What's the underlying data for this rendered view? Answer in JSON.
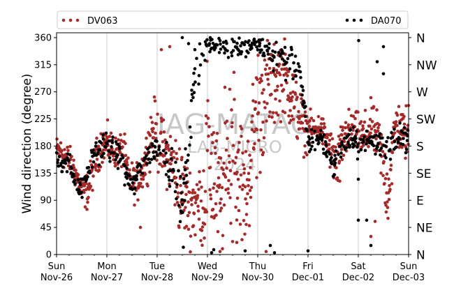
{
  "chart_data": {
    "type": "scatter",
    "ylabel": "Wind direction (degree)",
    "ylim": [
      0,
      368
    ],
    "yticks": [
      0,
      45,
      90,
      135,
      180,
      225,
      270,
      315,
      360
    ],
    "compass_labels": [
      {
        "deg": 0,
        "label": "N"
      },
      {
        "deg": 45,
        "label": "NE"
      },
      {
        "deg": 90,
        "label": "E"
      },
      {
        "deg": 135,
        "label": "SE"
      },
      {
        "deg": 180,
        "label": "S"
      },
      {
        "deg": 225,
        "label": "SW"
      },
      {
        "deg": 270,
        "label": "W"
      },
      {
        "deg": 315,
        "label": "NW"
      },
      {
        "deg": 360,
        "label": "N"
      }
    ],
    "xlim": [
      "2023-11-26",
      "2023-12-03"
    ],
    "xticks": [
      {
        "day": "Sun",
        "date": "Nov-26"
      },
      {
        "day": "Mon",
        "date": "Nov-27"
      },
      {
        "day": "Tue",
        "date": "Nov-28"
      },
      {
        "day": "Wed",
        "date": "Nov-29"
      },
      {
        "day": "Thu",
        "date": "Nov-30"
      },
      {
        "day": "Fri",
        "date": "Dec-01"
      },
      {
        "day": "Sat",
        "date": "Dec-02"
      },
      {
        "day": "Sun",
        "date": "Dec-03"
      }
    ],
    "grid": "vertical at day boundaries",
    "legend_placement": "top",
    "watermark": [
      "IAG-MATAO",
      "LAB-MICRO",
      "2024"
    ],
    "series": [
      {
        "name": "DV063",
        "color": "#a52a2a",
        "marker": "dot",
        "anchors": [
          [
            "2023-11-26 00:00",
            175,
            10
          ],
          [
            "2023-11-26 04:00",
            165,
            12
          ],
          [
            "2023-11-26 08:00",
            145,
            12
          ],
          [
            "2023-11-26 12:00",
            105,
            12
          ],
          [
            "2023-11-26 15:00",
            105,
            15
          ],
          [
            "2023-11-26 18:00",
            150,
            15
          ],
          [
            "2023-11-26 21:00",
            180,
            15
          ],
          [
            "2023-11-27 00:00",
            185,
            15
          ],
          [
            "2023-11-27 04:00",
            170,
            12
          ],
          [
            "2023-11-27 08:00",
            175,
            15
          ],
          [
            "2023-11-27 10:00",
            130,
            15
          ],
          [
            "2023-11-27 14:00",
            115,
            15
          ],
          [
            "2023-11-27 18:00",
            150,
            18
          ],
          [
            "2023-11-27 22:00",
            210,
            25
          ],
          [
            "2023-11-28 02:00",
            175,
            25
          ],
          [
            "2023-11-28 06:00",
            160,
            25
          ],
          [
            "2023-11-28 10:00",
            120,
            40
          ],
          [
            "2023-11-28 14:00",
            90,
            30
          ],
          [
            "2023-11-28 18:00",
            85,
            35
          ],
          [
            "2023-11-28 22:00",
            80,
            40
          ],
          [
            "2023-11-29 00:00",
            180,
            90
          ],
          [
            "2023-11-29 06:00",
            85,
            40
          ],
          [
            "2023-11-29 12:00",
            180,
            100
          ],
          [
            "2023-11-29 18:00",
            90,
            40
          ],
          [
            "2023-11-30 00:00",
            250,
            60
          ],
          [
            "2023-11-30 06:00",
            280,
            40
          ],
          [
            "2023-11-30 12:00",
            300,
            30
          ],
          [
            "2023-11-30 18:00",
            250,
            30
          ],
          [
            "2023-11-30 22:00",
            210,
            20
          ],
          [
            "2023-12-01 02:00",
            205,
            12
          ],
          [
            "2023-12-01 06:00",
            210,
            12
          ],
          [
            "2023-12-01 10:00",
            180,
            15
          ],
          [
            "2023-12-01 14:00",
            140,
            25
          ],
          [
            "2023-12-01 18:00",
            200,
            20
          ],
          [
            "2023-12-01 22:00",
            205,
            15
          ],
          [
            "2023-12-02 02:00",
            190,
            20
          ],
          [
            "2023-12-02 06:00",
            210,
            20
          ],
          [
            "2023-12-02 10:00",
            190,
            20
          ],
          [
            "2023-12-02 14:00",
            100,
            30
          ],
          [
            "2023-12-02 18:00",
            220,
            20
          ],
          [
            "2023-12-02 21:00",
            200,
            20
          ],
          [
            "2023-12-03 00:00",
            200,
            25
          ]
        ]
      },
      {
        "name": "DA070",
        "color": "#000000",
        "marker": "dot",
        "anchors": [
          [
            "2023-11-26 00:00",
            162,
            8
          ],
          [
            "2023-11-26 06:00",
            150,
            10
          ],
          [
            "2023-11-26 12:00",
            105,
            10
          ],
          [
            "2023-11-26 18:00",
            170,
            10
          ],
          [
            "2023-11-27 00:00",
            180,
            10
          ],
          [
            "2023-11-27 06:00",
            165,
            10
          ],
          [
            "2023-11-27 12:00",
            110,
            10
          ],
          [
            "2023-11-27 18:00",
            160,
            12
          ],
          [
            "2023-11-28 00:00",
            180,
            12
          ],
          [
            "2023-11-28 06:00",
            150,
            15
          ],
          [
            "2023-11-28 12:00",
            75,
            20
          ],
          [
            "2023-11-28 18:00",
            300,
            30
          ],
          [
            "2023-11-29 00:00",
            350,
            8
          ],
          [
            "2023-11-29 12:00",
            345,
            10
          ],
          [
            "2023-11-30 00:00",
            350,
            10
          ],
          [
            "2023-11-30 12:00",
            320,
            15
          ],
          [
            "2023-11-30 20:00",
            310,
            15
          ],
          [
            "2023-12-01 00:00",
            185,
            10
          ],
          [
            "2023-12-01 06:00",
            195,
            10
          ],
          [
            "2023-12-01 12:00",
            145,
            10
          ],
          [
            "2023-12-01 18:00",
            190,
            10
          ],
          [
            "2023-12-02 00:00",
            185,
            10
          ],
          [
            "2023-12-02 06:00",
            190,
            10
          ],
          [
            "2023-12-02 12:00",
            180,
            20
          ],
          [
            "2023-12-02 18:00",
            200,
            15
          ],
          [
            "2023-12-03 00:00",
            190,
            10
          ]
        ]
      }
    ],
    "sparse_points": [
      {
        "series": "DA070",
        "points": [
          [
            "2023-11-28 12:30",
            12
          ],
          [
            "2023-11-29 02:00",
            3
          ],
          [
            "2023-11-29 03:00",
            8
          ],
          [
            "2023-11-29 18:00",
            6
          ],
          [
            "2023-11-30 06:00",
            15
          ],
          [
            "2023-11-30 08:00",
            3
          ],
          [
            "2023-12-01 00:00",
            6
          ],
          [
            "2023-12-02 00:00",
            125
          ],
          [
            "2023-12-02 00:00",
            57
          ],
          [
            "2023-12-02 00:10",
            355
          ],
          [
            "2023-12-02 04:00",
            57
          ],
          [
            "2023-12-02 06:00",
            15
          ],
          [
            "2023-12-02 09:00",
            320
          ],
          [
            "2023-12-02 12:00",
            345
          ],
          [
            "2023-12-02 12:00",
            300
          ],
          [
            "2023-11-28 15:00",
            350
          ],
          [
            "2023-11-28 12:00",
            360
          ],
          [
            "2023-11-28 18:00",
            340
          ]
        ]
      },
      {
        "series": "DV063",
        "points": [
          [
            "2023-11-27 16:00",
            45
          ],
          [
            "2023-11-28 02:00",
            340
          ],
          [
            "2023-11-28 06:00",
            345
          ],
          [
            "2023-11-29 06:00",
            5
          ],
          [
            "2023-11-29 14:00",
            20
          ],
          [
            "2023-11-30 04:00",
            5
          ],
          [
            "2023-12-02 06:00",
            30
          ],
          [
            "2023-12-02 08:00",
            55
          ]
        ]
      }
    ]
  }
}
